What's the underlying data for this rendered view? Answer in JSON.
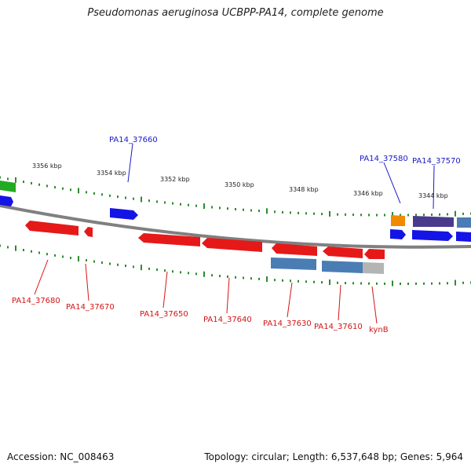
{
  "title": "Pseudomonas aeruginosa UCBPP-PA14, complete genome",
  "footer": {
    "accession": "Accession: NC_008463",
    "topology": "Topology: circular; Length: 6,537,648 bp; Genes: 5,964"
  },
  "colors": {
    "backbone": "#808080",
    "tick": "#2e8b2e",
    "label_top": "#1a1ac8",
    "label_bottom": "#d41414",
    "gene_red": "#e61919",
    "gene_blue": "#1414e6",
    "gene_steelblue": "#4a7db4",
    "gene_green": "#22aa22",
    "gene_orange": "#f08a00",
    "gene_purple": "#4a3a8c",
    "gene_gray": "#b4b4b4"
  },
  "scale_labels": [
    "3356 kbp",
    "3354 kbp",
    "3352 kbp",
    "3350 kbp",
    "3348 kbp",
    "3346 kbp",
    "3344 kbp"
  ],
  "top_labels": [
    "PA14_37660",
    "PA14_37580",
    "PA14_37570"
  ],
  "bottom_labels": [
    "PA14_37680",
    "PA14_37670",
    "PA14_37650",
    "PA14_37640",
    "PA14_37630",
    "PA14_37610",
    "kynB"
  ]
}
